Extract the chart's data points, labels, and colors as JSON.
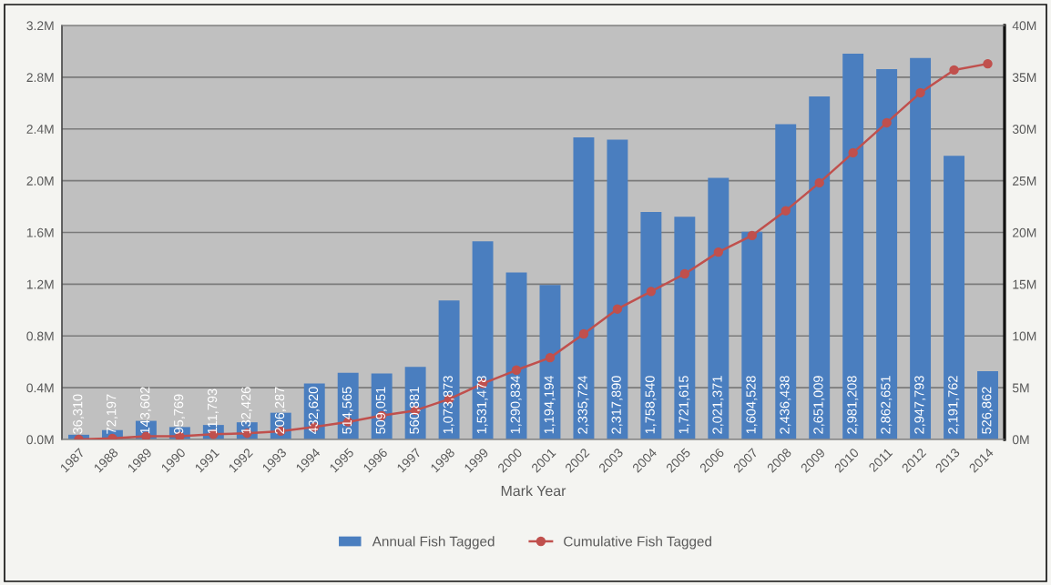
{
  "chart_data": {
    "type": "bar",
    "xlabel": "Mark Year",
    "categories": [
      "1987",
      "1988",
      "1989",
      "1990",
      "1991",
      "1992",
      "1993",
      "1994",
      "1995",
      "1996",
      "1997",
      "1998",
      "1999",
      "2000",
      "2001",
      "2002",
      "2003",
      "2004",
      "2005",
      "2006",
      "2007",
      "2008",
      "2009",
      "2010",
      "2011",
      "2012",
      "2013",
      "2014"
    ],
    "series": [
      {
        "name": "Annual Fish Tagged",
        "color": "#4a7ebf",
        "values": [
          36310,
          72197,
          143602,
          95769,
          111793,
          132426,
          206287,
          432620,
          514565,
          509051,
          560881,
          1073873,
          1531478,
          1290834,
          1194194,
          2335724,
          2317890,
          1758540,
          1721615,
          2021371,
          1604528,
          2436438,
          2651009,
          2981208,
          2862651,
          2947793,
          2191762,
          526862
        ],
        "value_labels": [
          "36,310",
          "72,197",
          "143,602",
          "95,769",
          "111,793",
          "132,426",
          "206,287",
          "432,620",
          "514,565",
          "509,051",
          "560,881",
          "1,073,873",
          "1,531,478",
          "1,290,834",
          "1,194,194",
          "2,335,724",
          "2,317,890",
          "1,758,540",
          "1,721,615",
          "2,021,371",
          "1,604,528",
          "2,436,438",
          "2,651,009",
          "2,981,208",
          "2,862,651",
          "2,947,793",
          "2,191,762",
          "526,862"
        ]
      },
      {
        "name": "Cumulative Fish Tagged",
        "type": "line",
        "axis": "y2",
        "color": "#c0504d",
        "marker": "circle",
        "line_style": "solid",
        "values": [
          0,
          100000,
          300000,
          300000,
          500000,
          600000,
          800000,
          1200000,
          1700000,
          2300000,
          2800000,
          3900000,
          5400000,
          6700000,
          7900000,
          10200000,
          12600000,
          14300000,
          16000000,
          18100000,
          19700000,
          22100000,
          24800000,
          27700000,
          30600000,
          33500000,
          35700000,
          36300000
        ]
      }
    ],
    "ylim": [
      0,
      3200000
    ],
    "yticks": [
      {
        "value": 0,
        "label": "0.0M"
      },
      {
        "value": 400000,
        "label": "0.4M"
      },
      {
        "value": 800000,
        "label": "0.8M"
      },
      {
        "value": 1200000,
        "label": "1.2M"
      },
      {
        "value": 1600000,
        "label": "1.6M"
      },
      {
        "value": 2000000,
        "label": "2.0M"
      },
      {
        "value": 2400000,
        "label": "2.4M"
      },
      {
        "value": 2800000,
        "label": "2.8M"
      },
      {
        "value": 3200000,
        "label": "3.2M"
      }
    ],
    "y2lim": [
      0,
      40000000
    ],
    "y2ticks": [
      {
        "value": 0,
        "label": "0M"
      },
      {
        "value": 5000000,
        "label": "5M"
      },
      {
        "value": 10000000,
        "label": "10M"
      },
      {
        "value": 15000000,
        "label": "15M"
      },
      {
        "value": 20000000,
        "label": "20M"
      },
      {
        "value": 25000000,
        "label": "25M"
      },
      {
        "value": 30000000,
        "label": "30M"
      },
      {
        "value": 35000000,
        "label": "35M"
      },
      {
        "value": 40000000,
        "label": "40M"
      }
    ],
    "grid": "y",
    "legend": "bottom"
  }
}
